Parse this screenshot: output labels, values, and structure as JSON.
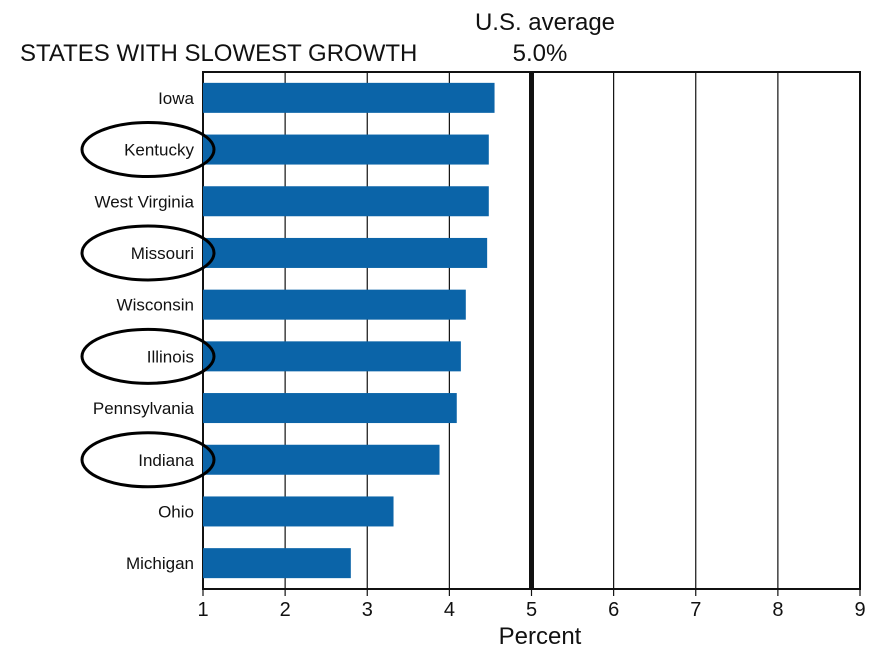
{
  "chart_data": {
    "type": "bar",
    "orientation": "horizontal",
    "title": "STATES WITH SLOWEST GROWTH",
    "reference_line": {
      "label": "U.S. average",
      "value_text": "5.0%",
      "value": 5.0
    },
    "categories": [
      "Iowa",
      "Kentucky",
      "West Virginia",
      "Missouri",
      "Wisconsin",
      "Illinois",
      "Pennsylvania",
      "Indiana",
      "Ohio",
      "Michigan"
    ],
    "values": [
      4.55,
      4.48,
      4.48,
      4.46,
      4.2,
      4.14,
      4.09,
      3.88,
      3.32,
      2.8
    ],
    "circled": [
      "Kentucky",
      "Missouri",
      "Illinois",
      "Indiana"
    ],
    "xlabel": "Percent",
    "ylabel": "",
    "xlim": [
      1,
      9
    ],
    "xticks": [
      "1",
      "2",
      "3",
      "4",
      "5",
      "6",
      "7",
      "8",
      "9"
    ],
    "grid": true,
    "bar_color": "#0b64a8",
    "reference_line_color": "#111111"
  }
}
